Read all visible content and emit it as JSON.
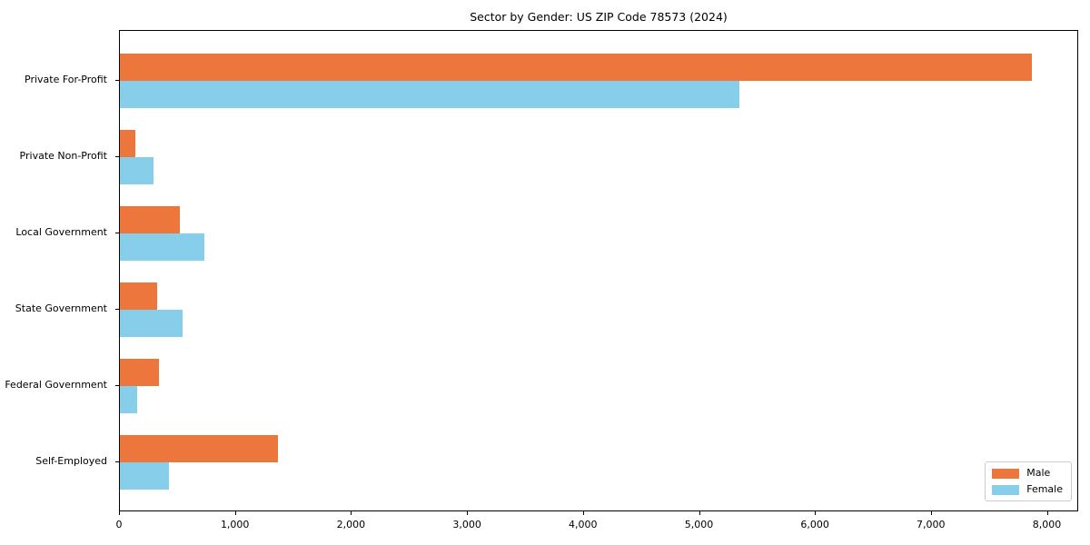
{
  "title": "Sector by Gender: US ZIP Code 78573 (2024)",
  "colors": {
    "male": "#EC763C",
    "female": "#87CEEB",
    "spine": "#000000",
    "legend_border": "#cccccc"
  },
  "legend": {
    "position": "lower right",
    "items": [
      {
        "label": "Male",
        "color_key": "male"
      },
      {
        "label": "Female",
        "color_key": "female"
      }
    ]
  },
  "x_axis": {
    "tick_values": [
      0,
      1000,
      2000,
      3000,
      4000,
      5000,
      6000,
      7000,
      8000
    ],
    "tick_labels": [
      "0",
      "1,000",
      "2,000",
      "3,000",
      "4,000",
      "5,000",
      "6,000",
      "7,000",
      "8,000"
    ]
  },
  "chart_data": {
    "type": "bar",
    "orientation": "horizontal",
    "title": "Sector by Gender: US ZIP Code 78573 (2024)",
    "categories": [
      "Private For-Profit",
      "Private Non-Profit",
      "Local Government",
      "State Government",
      "Federal Government",
      "Self-Employed"
    ],
    "series": [
      {
        "name": "Male",
        "color": "#EC763C",
        "values": [
          7860,
          130,
          520,
          320,
          340,
          1360
        ]
      },
      {
        "name": "Female",
        "color": "#87CEEB",
        "values": [
          5340,
          290,
          730,
          540,
          150,
          420
        ]
      }
    ],
    "xlabel": "",
    "ylabel": "",
    "xlim": [
      0,
      8270
    ],
    "grid": false,
    "legend_position": "lower right"
  }
}
